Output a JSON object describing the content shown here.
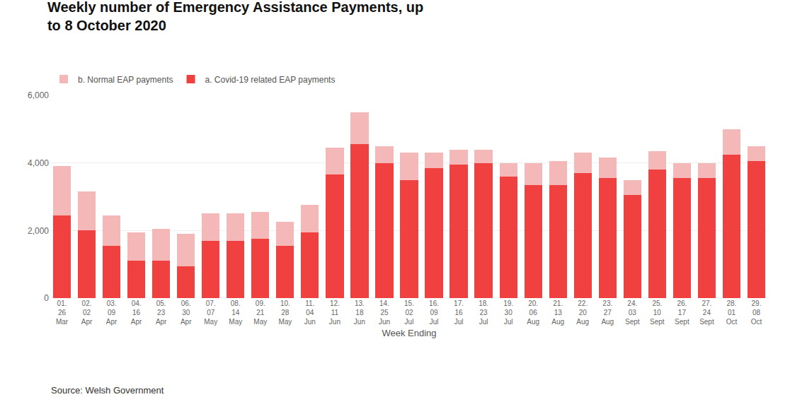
{
  "chart_data": {
    "type": "bar",
    "stacked": true,
    "title": "Weekly number of Emergency Assistance Payments, up\nto 8 October 2020",
    "xlabel": "Week Ending",
    "annotations": [
      "Source: Welsh Government"
    ],
    "categories": [
      "01.\n26\nMar",
      "02.\n02\nApr",
      "03.\n09\nApr",
      "04.\n16\nApr",
      "05.\n23\nApr",
      "06.\n30\nApr",
      "07.\n07\nMay",
      "08.\n14\nMay",
      "09.\n21\nMay",
      "10.\n28\nMay",
      "11.\n04\nJun",
      "12.\n11\nJun",
      "13.\n18\nJun",
      "14.\n25\nJun",
      "15.\n02\nJul",
      "16.\n09\nJul",
      "17.\n16\nJul",
      "18.\n23\nJul",
      "19.\n30\nJul",
      "20.\n06\nAug",
      "21.\n13\nAug",
      "22.\n20\nAug",
      "23.\n27\nAug",
      "24.\n03\nSept",
      "25.\n10\nSept",
      "26.\n17\nSept",
      "27.\n24\nSept",
      "28.\n01\nOct",
      "29.\n08\nOct"
    ],
    "series": [
      {
        "name": "a. Covid-19 related EAP payments",
        "color": "#f04040",
        "values": [
          2450,
          2000,
          1550,
          1100,
          1100,
          950,
          1700,
          1700,
          1750,
          1550,
          1950,
          3650,
          4550,
          4000,
          3500,
          3850,
          3950,
          4000,
          3600,
          3350,
          3350,
          3700,
          3550,
          3050,
          3800,
          3550,
          3550,
          4250,
          4050
        ]
      },
      {
        "name": "b. Normal EAP payments",
        "color": "#f5b8b8",
        "values": [
          1450,
          1150,
          900,
          850,
          950,
          950,
          800,
          800,
          800,
          700,
          800,
          800,
          950,
          500,
          800,
          450,
          450,
          400,
          400,
          650,
          700,
          600,
          600,
          450,
          550,
          450,
          450,
          750,
          450
        ]
      }
    ],
    "ylim": [
      0,
      6000
    ],
    "yticks": [
      0,
      {
        "value": 2000,
        "label": "2,000"
      },
      {
        "value": 4000,
        "label": "4,000"
      },
      {
        "value": 6000,
        "label": "6,000"
      }
    ],
    "grid": true,
    "legend": "top left"
  }
}
